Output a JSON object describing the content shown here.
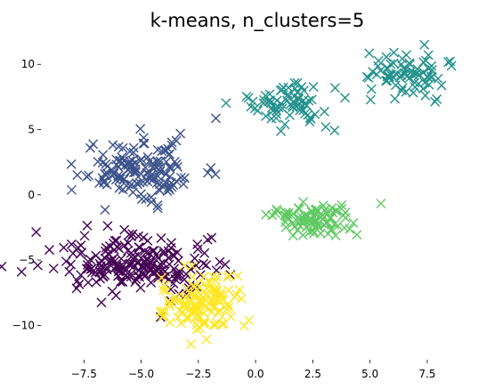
{
  "chart_data": {
    "type": "scatter",
    "title": "k-means, n_clusters=5",
    "xlabel": "",
    "ylabel": "",
    "xlim": [
      -9.3,
      9.6
    ],
    "ylim": [
      -12.5,
      12.2
    ],
    "grid": false,
    "legend": "none",
    "marker": "x",
    "x_ticks": [
      -7.5,
      -5.0,
      -2.5,
      0.0,
      2.5,
      5.0,
      7.5
    ],
    "x_tick_labels": [
      "−7.5",
      "−5.0",
      "−2.5",
      "0.0",
      "2.5",
      "5.0",
      "7.5"
    ],
    "y_ticks": [
      -10,
      -5,
      0,
      5,
      10
    ],
    "y_tick_labels": [
      "−10",
      "−5",
      "0",
      "5",
      "10"
    ],
    "clusters": [
      {
        "color": "#440154",
        "center": [
          -5.2,
          -5.4
        ],
        "spread": [
          1.7,
          1.1
        ],
        "count": 200
      },
      {
        "color": "#3b528b",
        "center": [
          -4.8,
          1.8
        ],
        "spread": [
          1.3,
          1.2
        ],
        "count": 150
      },
      {
        "color": "#21918c",
        "center": [
          1.5,
          7.0
        ],
        "spread": [
          1.0,
          0.9
        ],
        "count": 70
      },
      {
        "color": "#21918c",
        "center": [
          6.5,
          9.2
        ],
        "spread": [
          0.9,
          0.8
        ],
        "count": 80
      },
      {
        "color": "#5ec962",
        "center": [
          2.5,
          -1.9
        ],
        "spread": [
          0.95,
          0.65
        ],
        "count": 90
      },
      {
        "color": "#fde725",
        "center": [
          -2.5,
          -8.4
        ],
        "spread": [
          1.0,
          1.15
        ],
        "count": 130
      }
    ]
  }
}
